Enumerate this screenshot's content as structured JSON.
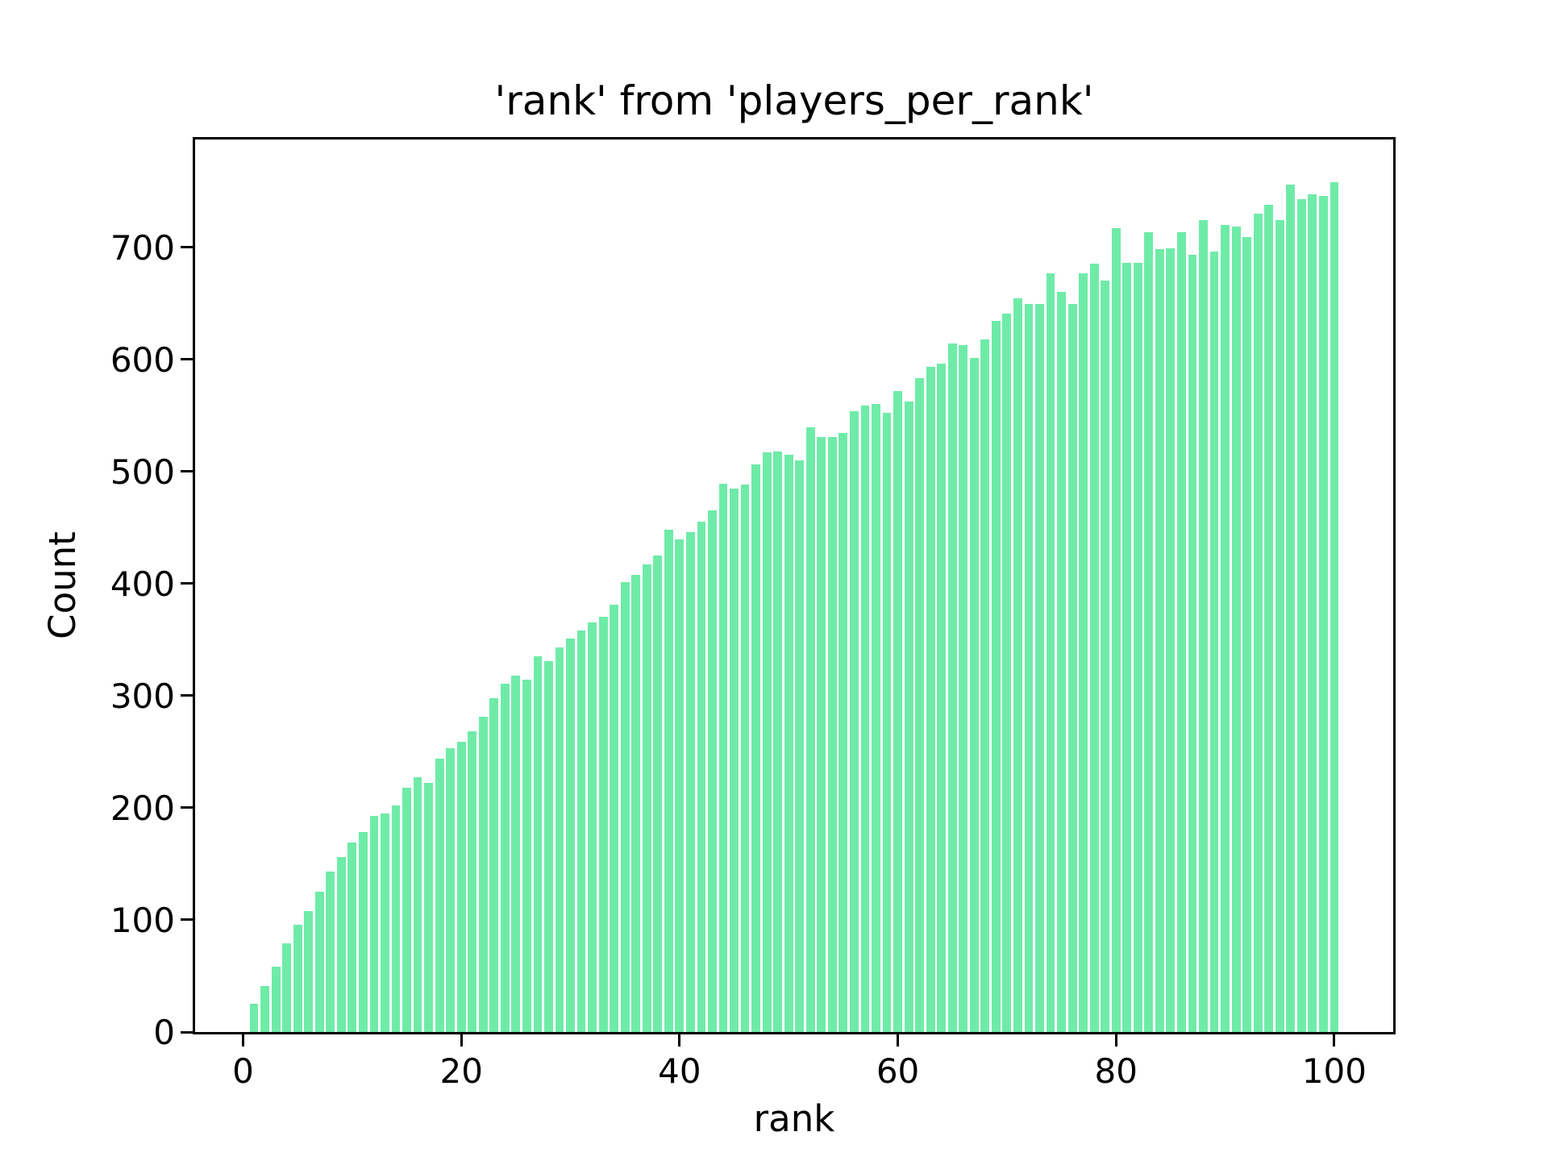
{
  "chart": {
    "title": "'rank' from 'players_per_rank'",
    "xlabel": "rank",
    "ylabel": "Count"
  },
  "chart_data": {
    "type": "bar",
    "title": "'rank' from 'players_per_rank'",
    "xlabel": "rank",
    "ylabel": "Count",
    "bar_color": "#6FEBA8",
    "background_color": "#ffffff",
    "text_color": "#000000",
    "grid": false,
    "legend_position": "none",
    "bar_width": 0.8,
    "xlim": [
      -4.4,
      105.4
    ],
    "ylim": [
      0,
      796
    ],
    "x_ticks": [
      0,
      20,
      40,
      60,
      80,
      100
    ],
    "y_ticks": [
      0,
      100,
      200,
      300,
      400,
      500,
      600,
      700
    ],
    "x": [
      1,
      2,
      3,
      4,
      5,
      6,
      7,
      8,
      9,
      10,
      11,
      12,
      13,
      14,
      15,
      16,
      17,
      18,
      19,
      20,
      21,
      22,
      23,
      24,
      25,
      26,
      27,
      28,
      29,
      30,
      31,
      32,
      33,
      34,
      35,
      36,
      37,
      38,
      39,
      40,
      41,
      42,
      43,
      44,
      45,
      46,
      47,
      48,
      49,
      50,
      51,
      52,
      53,
      54,
      55,
      56,
      57,
      58,
      59,
      60,
      61,
      62,
      63,
      64,
      65,
      66,
      67,
      68,
      69,
      70,
      71,
      72,
      73,
      74,
      75,
      76,
      77,
      78,
      79,
      80,
      81,
      82,
      83,
      84,
      85,
      86,
      87,
      88,
      89,
      90,
      91,
      92,
      93,
      94,
      95,
      96,
      97,
      98,
      99,
      100
    ],
    "values": [
      25,
      41,
      58,
      79,
      96,
      108,
      125,
      143,
      156,
      169,
      178,
      193,
      195,
      202,
      218,
      227,
      222,
      244,
      253,
      259,
      268,
      281,
      298,
      311,
      318,
      314,
      335,
      331,
      343,
      351,
      358,
      365,
      370,
      381,
      401,
      408,
      417,
      425,
      448,
      439,
      446,
      455,
      465,
      489,
      485,
      488,
      506,
      517,
      518,
      515,
      510,
      539,
      531,
      531,
      534,
      554,
      559,
      560,
      552,
      572,
      562,
      583,
      593,
      596,
      614,
      613,
      601,
      618,
      634,
      641,
      654,
      649,
      649,
      677,
      660,
      649,
      677,
      685,
      670,
      717,
      686,
      686,
      713,
      698,
      699,
      713,
      693,
      724,
      696,
      720,
      718,
      709,
      730,
      738,
      724,
      756,
      743,
      747,
      746,
      758
    ]
  }
}
